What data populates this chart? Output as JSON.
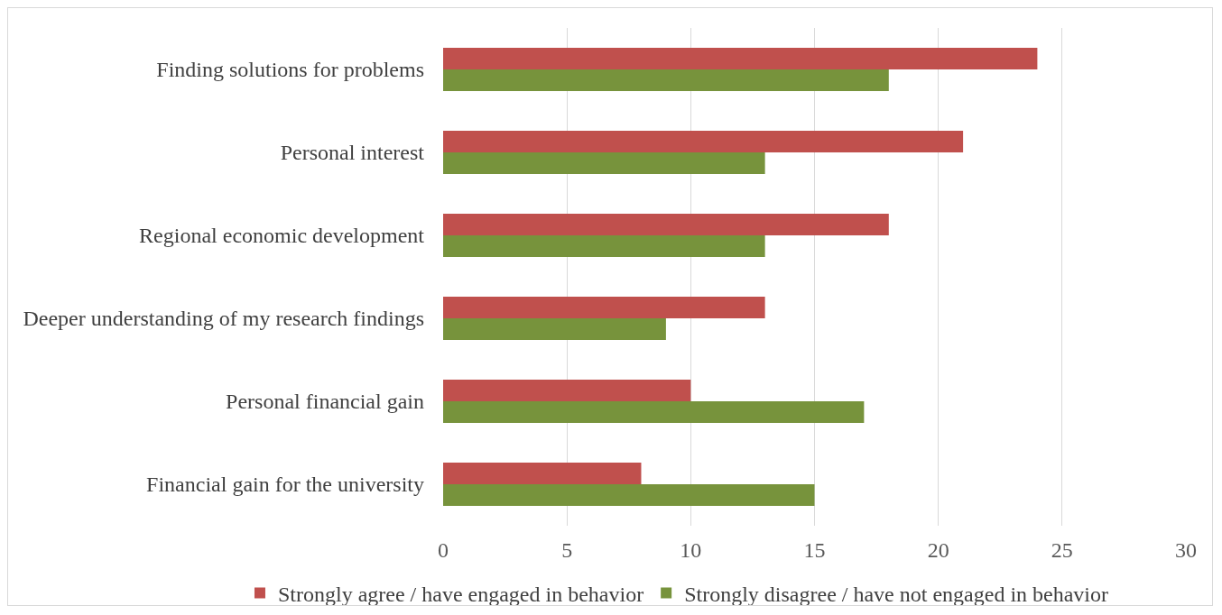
{
  "chart_data": {
    "type": "bar",
    "orientation": "horizontal",
    "categories": [
      "Finding solutions for problems",
      "Personal interest",
      "Regional economic development",
      "Deeper understanding of my research findings",
      "Personal financial gain",
      "Financial gain for the university"
    ],
    "series": [
      {
        "name": "Strongly agree / have engaged in behavior",
        "color": "#c0504d",
        "values": [
          24,
          21,
          18,
          13,
          10,
          8
        ]
      },
      {
        "name": "Strongly disagree / have not engaged in behavior",
        "color": "#77933c",
        "values": [
          18,
          13,
          13,
          9,
          17,
          15
        ]
      }
    ],
    "xlim": [
      0,
      30
    ],
    "xticks": [
      0,
      5,
      10,
      15,
      20,
      25,
      30
    ],
    "grid": "x",
    "legend": "bottom"
  }
}
